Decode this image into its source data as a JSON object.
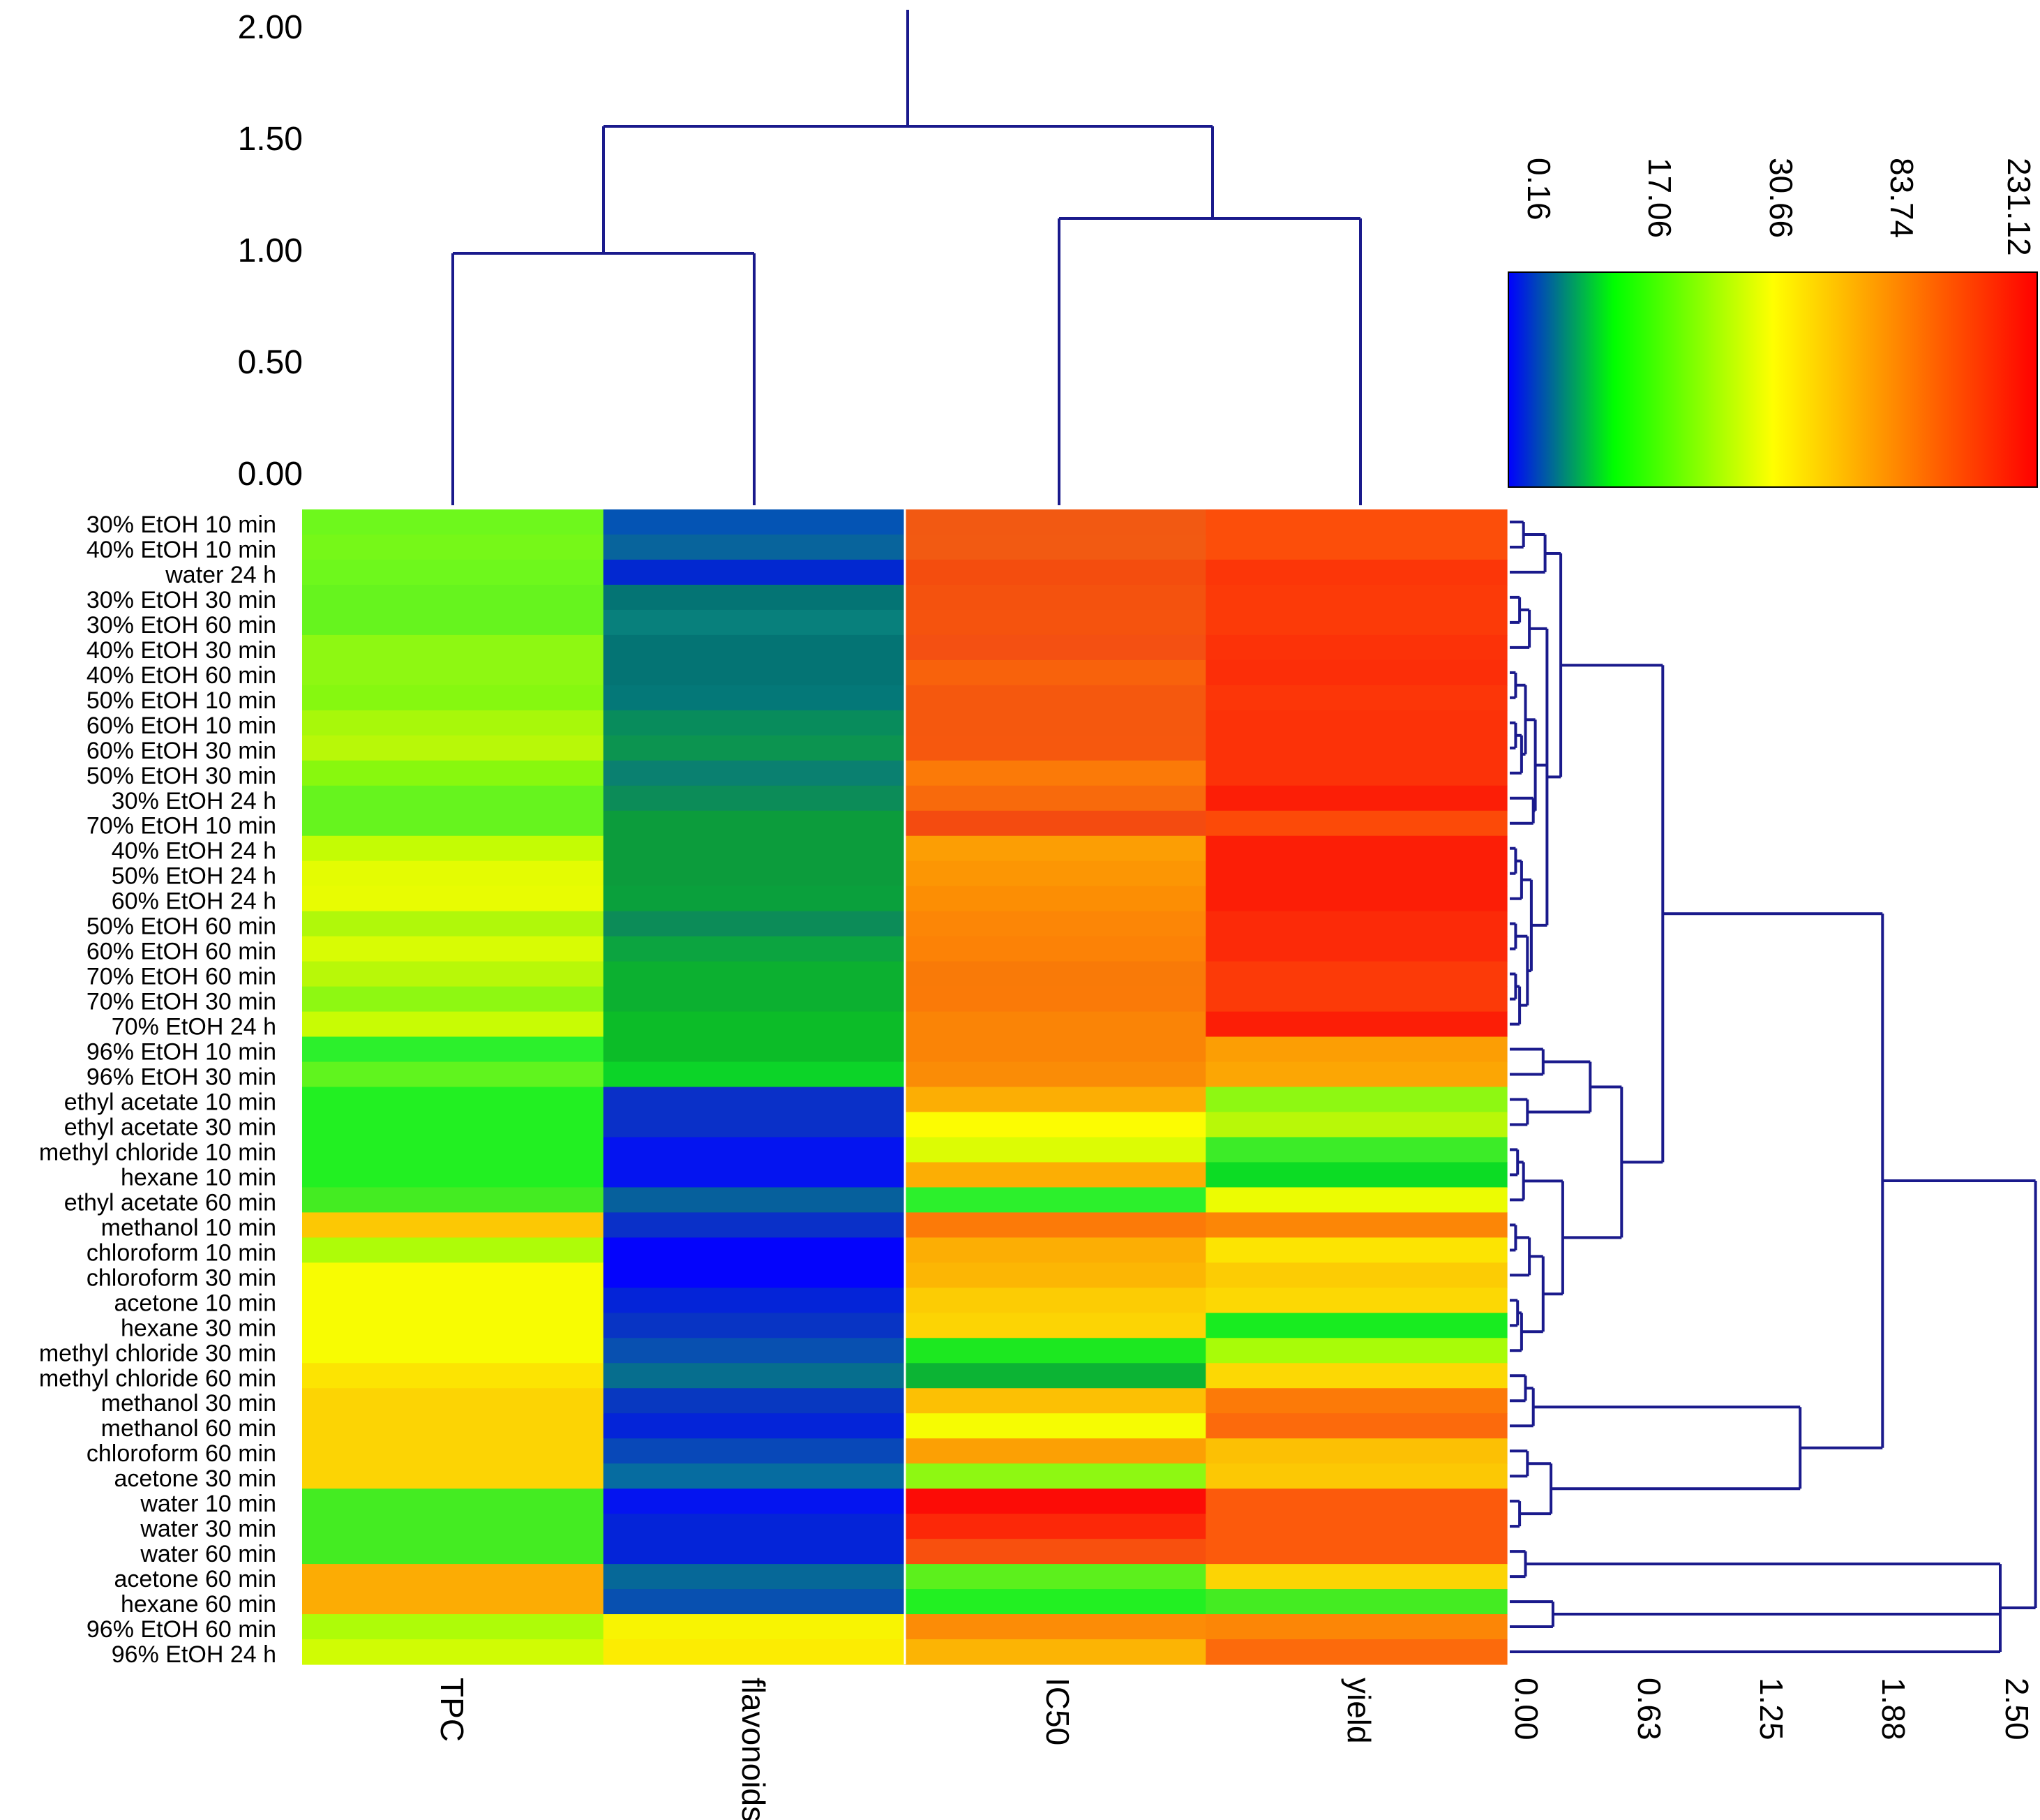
{
  "chart_data": {
    "type": "heatmap",
    "title": "",
    "columns": [
      "TPC",
      "flavonoids",
      "IC50",
      "yield"
    ],
    "rows": [
      "30% EtOH 10 min",
      "40% EtOH 10 min",
      "water 24 h",
      "30% EtOH 30 min",
      "30% EtOH 60 min",
      "40% EtOH 30 min",
      "40% EtOH 60 min",
      "50% EtOH 10 min",
      "60% EtOH 10 min",
      "60% EtOH 30 min",
      "50% EtOH 30 min",
      "30% EtOH 24 h",
      "70% EtOH 10 min",
      "40% EtOH 24 h",
      "50% EtOH 24 h",
      "60% EtOH 24 h",
      "50% EtOH 60 min",
      "60% EtOH 60 min",
      "70% EtOH 60 min",
      "70% EtOH 30 min",
      "70% EtOH 24 h",
      "96% EtOH 10 min",
      "96% EtOH 30 min",
      "ethyl acetate 10 min",
      "ethyl acetate 30 min",
      "methyl chloride 10 min",
      "hexane 10 min",
      "ethyl acetate 60 min",
      "methanol 10 min",
      "chloroform 10 min",
      "chloroform 30 min",
      "acetone 10 min",
      "hexane 30 min",
      "methyl chloride 30 min",
      "methyl chloride 60 min",
      "methanol 30 min",
      "methanol 60 min",
      "chloroform 60 min",
      "acetone 30 min",
      "water 10 min",
      "water 30 min",
      "water 60 min",
      "acetone 60 min",
      "hexane 60 min",
      "96% EtOH 60 min",
      "96% EtOH 24 h"
    ],
    "cell_colors": [
      [
        "#6ef81c",
        "#0454b4",
        "#f25912",
        "#fc4e0a"
      ],
      [
        "#76f818",
        "#08649c",
        "#f25a12",
        "#fc4e0a"
      ],
      [
        "#6ef81c",
        "#0228d0",
        "#f44d0e",
        "#fc3608"
      ],
      [
        "#66f41e",
        "#047474",
        "#f4520e",
        "#fc3a08"
      ],
      [
        "#66f41e",
        "#08807c",
        "#f5530e",
        "#fc3a08"
      ],
      [
        "#8ef812",
        "#047474",
        "#f45012",
        "#fc3208"
      ],
      [
        "#8ef812",
        "#047474",
        "#f8620c",
        "#fc2e08"
      ],
      [
        "#86f810",
        "#047878",
        "#f5580e",
        "#fc3608"
      ],
      [
        "#a8f80a",
        "#088c5c",
        "#f5580e",
        "#fc3208"
      ],
      [
        "#b8f808",
        "#0c9450",
        "#f6580e",
        "#fc3208"
      ],
      [
        "#88f80e",
        "#0a8070",
        "#fb7a08",
        "#fc3208"
      ],
      [
        "#66f41e",
        "#0c8c58",
        "#f86a0c",
        "#fc1e06"
      ],
      [
        "#66f41e",
        "#0c9c3c",
        "#f44b10",
        "#fc4a08"
      ],
      [
        "#c4fc04",
        "#0c9c3c",
        "#fc9e04",
        "#fc1e06"
      ],
      [
        "#e4fc02",
        "#0c9c3c",
        "#fc9604",
        "#fc1e06"
      ],
      [
        "#e8fc02",
        "#0aa03c",
        "#fc8e04",
        "#fc1e06"
      ],
      [
        "#b0f80a",
        "#0c8c58",
        "#fc8606",
        "#fc2a08"
      ],
      [
        "#d8fc04",
        "#0ca440",
        "#fc8206",
        "#fc2a08"
      ],
      [
        "#b8f808",
        "#0cb030",
        "#f97a08",
        "#fc3a08"
      ],
      [
        "#8ef812",
        "#0cb030",
        "#fa7a08",
        "#fc3a08"
      ],
      [
        "#c8fc04",
        "#0cbc28",
        "#fa8406",
        "#fc1e06"
      ],
      [
        "#2cf02c",
        "#0cbc28",
        "#fa8406",
        "#fc9e04"
      ],
      [
        "#60f41e",
        "#0cd428",
        "#fa8c06",
        "#fca604"
      ],
      [
        "#22f022",
        "#0a30c8",
        "#fcae04",
        "#8ef812"
      ],
      [
        "#22f022",
        "#0a30c8",
        "#fcfc02",
        "#b8f808"
      ],
      [
        "#22f022",
        "#0414f0",
        "#dcfc04",
        "#3cec28"
      ],
      [
        "#22f022",
        "#0414f0",
        "#fcae04",
        "#0cdc24"
      ],
      [
        "#44ec22",
        "#06609c",
        "#2cf02c",
        "#ecfc02"
      ],
      [
        "#fcc804",
        "#0a30c8",
        "#fc7a08",
        "#fc8606"
      ],
      [
        "#aefc08",
        "#0404fc",
        "#fcae04",
        "#fce402"
      ],
      [
        "#f8fc02",
        "#0404fc",
        "#fcb604",
        "#fccc04"
      ],
      [
        "#f8fc02",
        "#0424d8",
        "#fccc04",
        "#fcd804"
      ],
      [
        "#f8fc02",
        "#0834c4",
        "#fcd404",
        "#18ec20"
      ],
      [
        "#f8fc02",
        "#0850b0",
        "#1ce820",
        "#a8fc08"
      ],
      [
        "#fce402",
        "#066e8e",
        "#0cb434",
        "#fcd804"
      ],
      [
        "#fcd404",
        "#0838c0",
        "#fcc004",
        "#fc7a08"
      ],
      [
        "#fcd404",
        "#0424d8",
        "#f6fc02",
        "#fc6a0c"
      ],
      [
        "#fcd404",
        "#0848b8",
        "#fca004",
        "#fcc004"
      ],
      [
        "#fcd404",
        "#066ca0",
        "#8ef812",
        "#fcc804"
      ],
      [
        "#44ec22",
        "#0414f0",
        "#fc0c06",
        "#fc5a0c"
      ],
      [
        "#44ec22",
        "#0424d8",
        "#fc2808",
        "#fc5a0c"
      ],
      [
        "#44ec22",
        "#0424d8",
        "#f8500e",
        "#fc5a0c"
      ],
      [
        "#fcac04",
        "#066898",
        "#5cf01c",
        "#fcd404"
      ],
      [
        "#fcac04",
        "#0850b0",
        "#22f022",
        "#44ec22"
      ],
      [
        "#aefc08",
        "#f8f402",
        "#fc8c06",
        "#fc8606"
      ],
      [
        "#d0fc04",
        "#fcec02",
        "#fcb404",
        "#fc6a0c"
      ]
    ],
    "colorbar": {
      "tick_labels": [
        "0.16",
        "17.06",
        "30.66",
        "83.74",
        "231.12"
      ],
      "colors": [
        "#0000ff",
        "#00ff00",
        "#ffff00",
        "#ff0000"
      ]
    },
    "column_dendrogram": {
      "axis_ticks": [
        "2.00",
        "1.50",
        "1.00",
        "0.50",
        "0.00"
      ],
      "ylim": [
        0,
        2.0
      ],
      "merges": [
        {
          "children": [
            "TPC",
            "flavonoids"
          ],
          "height": 1.0
        },
        {
          "children": [
            "IC50",
            "yield"
          ],
          "height": 1.15
        },
        {
          "children": [
            "TPC+flavonoids",
            "IC50+yield"
          ],
          "height": 1.57
        },
        {
          "children": [
            "root",
            "top"
          ],
          "height": 2.0
        }
      ]
    },
    "row_dendrogram": {
      "axis_ticks": [
        "0.00",
        "0.63",
        "1.25",
        "1.88",
        "2.50"
      ],
      "xlim": [
        0,
        2.5
      ]
    }
  }
}
